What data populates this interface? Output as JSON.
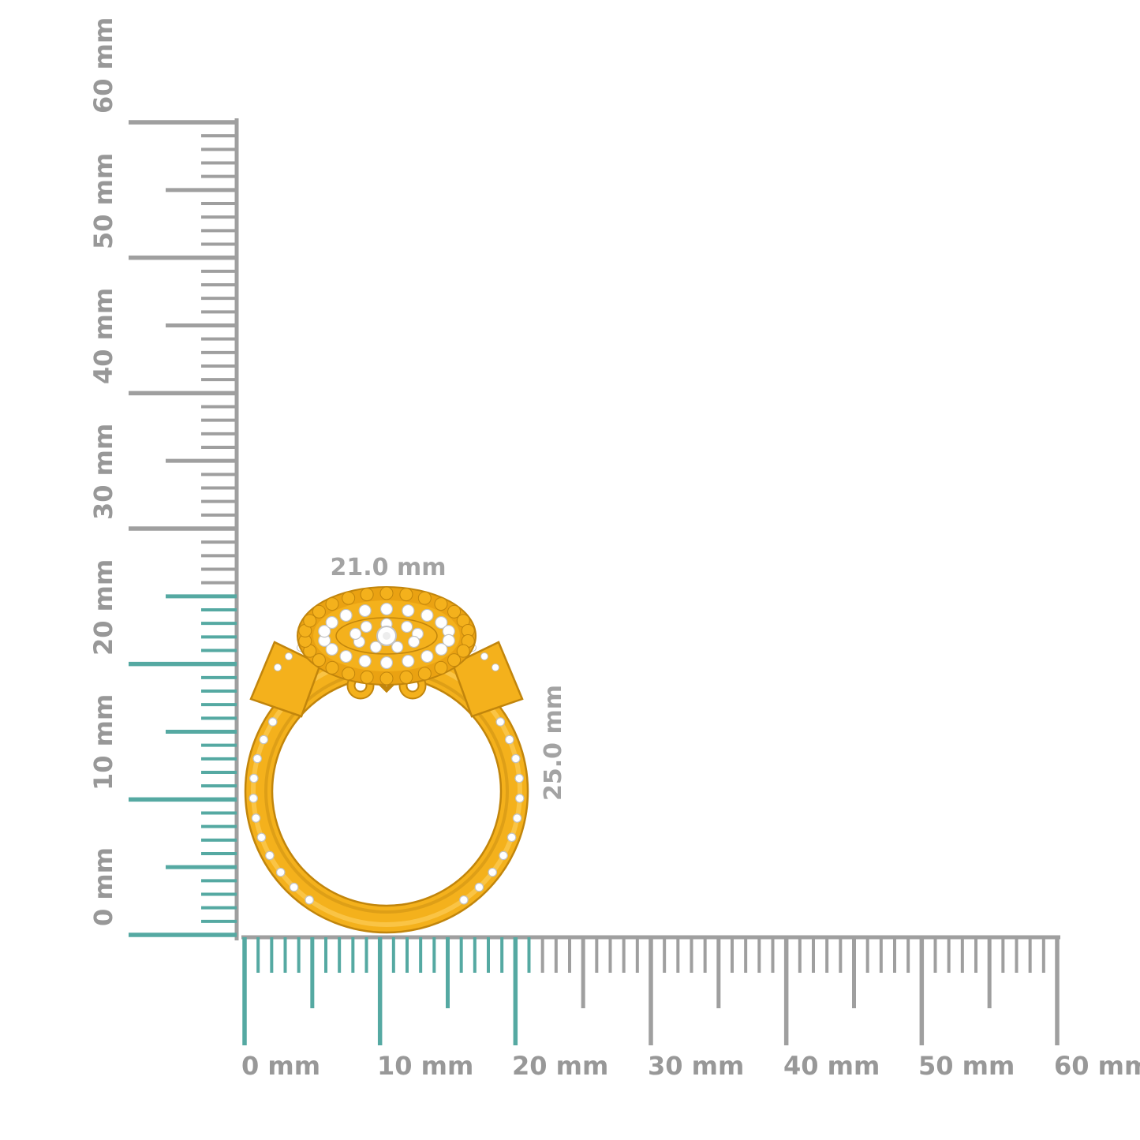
{
  "page": {
    "background": "#ffffff"
  },
  "colors": {
    "ruler_gray": "#9f9f9f",
    "ruler_highlight_teal": "#55a9a2",
    "ruler_label_gray": "#989898",
    "dim_label_gray": "#a3a3a3",
    "gold_light": "#ffd76e",
    "gold_main": "#f4b11c",
    "gold_mid": "#eaa212",
    "gold_dark": "#c1850c",
    "gold_deep": "#9a6c07",
    "diamond_white": "#ffffff",
    "diamond_stroke": "#c2c2c2"
  },
  "objects": {
    "ring": "gold-double-halo-diamond-ring-front-view"
  },
  "vertical_ruler": {
    "unit": "mm",
    "min_mm": 0,
    "max_mm": 60,
    "major_step_mm": 10,
    "mid_step_mm": 5,
    "minor_step_mm": 1,
    "highlight_min_mm": 0,
    "highlight_max_mm": 25,
    "labels": [
      "0 mm",
      "10 mm",
      "20 mm",
      "30 mm",
      "40 mm",
      "50 mm",
      "60 mm"
    ]
  },
  "horizontal_ruler": {
    "unit": "mm",
    "min_mm": 0,
    "max_mm": 60,
    "major_step_mm": 10,
    "mid_step_mm": 5,
    "minor_step_mm": 1,
    "highlight_min_mm": 0,
    "highlight_max_mm": 21,
    "labels": [
      "0 mm",
      "10 mm",
      "20 mm",
      "30 mm",
      "40 mm",
      "50 mm",
      "60 mm"
    ]
  },
  "measurements": {
    "width_label": "21.0 mm",
    "height_label": "25.0 mm"
  }
}
